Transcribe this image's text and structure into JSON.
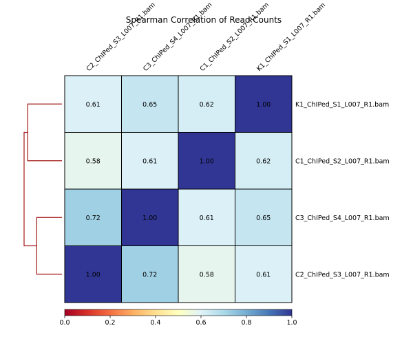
{
  "chart_data": {
    "type": "heatmap",
    "title": "Spearman Correlation of Read Counts",
    "column_labels": [
      "C2_ChIPed_S3_L007_R1.bam",
      "C3_ChIPed_S4_L007_R1.bam",
      "C1_ChIPed_S2_L007_R1.bam",
      "K1_ChIPed_S1_L007_R1.bam"
    ],
    "row_labels": [
      "K1_ChIPed_S1_L007_R1.bam",
      "C1_ChIPed_S2_L007_R1.bam",
      "C3_ChIPed_S4_L007_R1.bam",
      "C2_ChIPed_S3_L007_R1.bam"
    ],
    "values": [
      [
        0.61,
        0.65,
        0.62,
        1.0
      ],
      [
        0.58,
        0.61,
        1.0,
        0.62
      ],
      [
        0.72,
        1.0,
        0.61,
        0.65
      ],
      [
        1.0,
        0.72,
        0.58,
        0.61
      ]
    ],
    "value_labels": [
      [
        "0.61",
        "0.65",
        "0.62",
        "1.00"
      ],
      [
        "0.58",
        "0.61",
        "1.00",
        "0.62"
      ],
      [
        "0.72",
        "1.00",
        "0.61",
        "0.65"
      ],
      [
        "1.00",
        "0.72",
        "0.58",
        "0.61"
      ]
    ],
    "colorbar": {
      "range": [
        0.0,
        1.0
      ],
      "tick_values": [
        0.0,
        0.2,
        0.4,
        0.6,
        0.8,
        1.0
      ],
      "tick_labels": [
        "0.0",
        "0.2",
        "0.4",
        "0.6",
        "0.8",
        "1.0"
      ],
      "colormap": "RdYlBu",
      "orientation": "horizontal",
      "placement": "bottom"
    },
    "dendrogram": {
      "side": "left",
      "color": "#a31515",
      "merges": [
        {
          "left": "K1_ChIPed_S1_L007_R1.bam",
          "right": "C1_ChIPed_S2_L007_R1.bam",
          "height": 0.38
        },
        {
          "left": "C3_ChIPed_S4_L007_R1.bam",
          "right": "C2_ChIPed_S3_L007_R1.bam",
          "height": 0.28
        },
        {
          "left": "K1+C1",
          "right": "C3+C2",
          "height": 0.42
        }
      ]
    }
  }
}
